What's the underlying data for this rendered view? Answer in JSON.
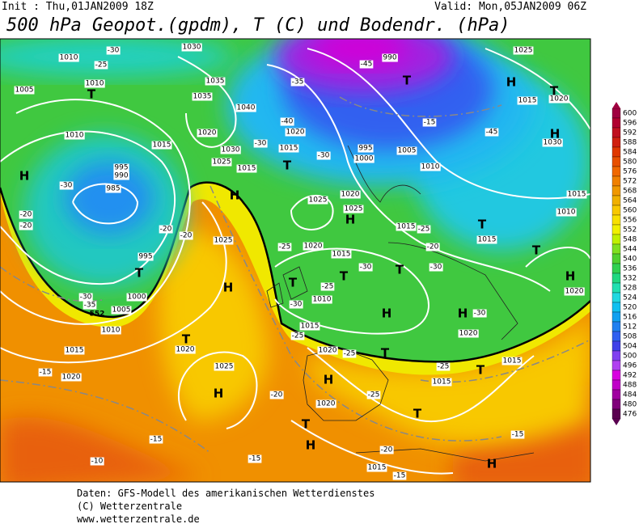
{
  "header": {
    "init": "Init : Thu,01JAN2009 18Z",
    "valid": "Valid: Mon,05JAN2009 06Z",
    "title": "500 hPa Geopot.(gpdm), T (C) und Bodendr. (hPa)"
  },
  "map": {
    "highs_lows": [
      "H",
      "H",
      "H",
      "H",
      "H",
      "H",
      "H",
      "H",
      "H",
      "H",
      "H",
      "H",
      "H",
      "T",
      "T",
      "T",
      "T",
      "T",
      "T",
      "T",
      "T",
      "T",
      "T",
      "T",
      "T",
      "T",
      "T",
      "T"
    ],
    "isobar_labels": [
      "1010",
      "1005",
      "1010",
      "1010",
      "1015",
      "1030",
      "1035",
      "1035",
      "1040",
      "1020",
      "1030",
      "1025",
      "1015",
      "1020",
      "1015",
      "990",
      "995",
      "1000",
      "1005",
      "1010",
      "1025",
      "1015",
      "1020",
      "1030",
      "1015",
      "1010",
      "1025",
      "1020",
      "1025",
      "1015",
      "1015",
      "1025",
      "1020",
      "1015",
      "1000",
      "1005",
      "1010",
      "1015",
      "1020",
      "1025",
      "1020",
      "1015",
      "1010",
      "1020",
      "1020",
      "1015",
      "1015",
      "1020",
      "1020",
      "1015",
      "995",
      "985",
      "990",
      "995"
    ],
    "temperature_labels": [
      "-25",
      "-30",
      "-35",
      "-40",
      "-45",
      "-15",
      "-45",
      "-30",
      "-30",
      "-30",
      "-20",
      "-20",
      "-20",
      "-20",
      "-25",
      "-25",
      "-20",
      "-30",
      "-30",
      "-30",
      "-25",
      "-30",
      "-25",
      "-25",
      "-25",
      "-25",
      "-20",
      "-20",
      "-15",
      "-15",
      "-15",
      "-10",
      "-15",
      "-15",
      "-30",
      "-35"
    ],
    "contour_label": "552"
  },
  "legend": {
    "labels": [
      600,
      596,
      592,
      588,
      584,
      580,
      576,
      572,
      568,
      564,
      560,
      556,
      552,
      548,
      544,
      540,
      536,
      532,
      528,
      524,
      520,
      516,
      512,
      508,
      504,
      500,
      496,
      492,
      488,
      484,
      480,
      476
    ],
    "colors": [
      "#a00040",
      "#b00030",
      "#c01020",
      "#d02010",
      "#e03800",
      "#e85000",
      "#f06800",
      "#f08000",
      "#f09800",
      "#f0b000",
      "#f8c800",
      "#f8e000",
      "#f0f000",
      "#c0f000",
      "#80e020",
      "#50d030",
      "#30d050",
      "#20d880",
      "#20e0b0",
      "#20d8e0",
      "#10c0f0",
      "#10a0f0",
      "#2080f0",
      "#3060f0",
      "#4040e8",
      "#8040f0",
      "#b040f0",
      "#d800e0",
      "#c000c8",
      "#a000a0",
      "#80007a",
      "#5a0050"
    ]
  },
  "footer": {
    "lines": [
      "Daten: GFS-Modell des amerikanischen Wetterdienstes",
      "(C) Wetterzentrale",
      "www.wetterzentrale.de"
    ]
  }
}
